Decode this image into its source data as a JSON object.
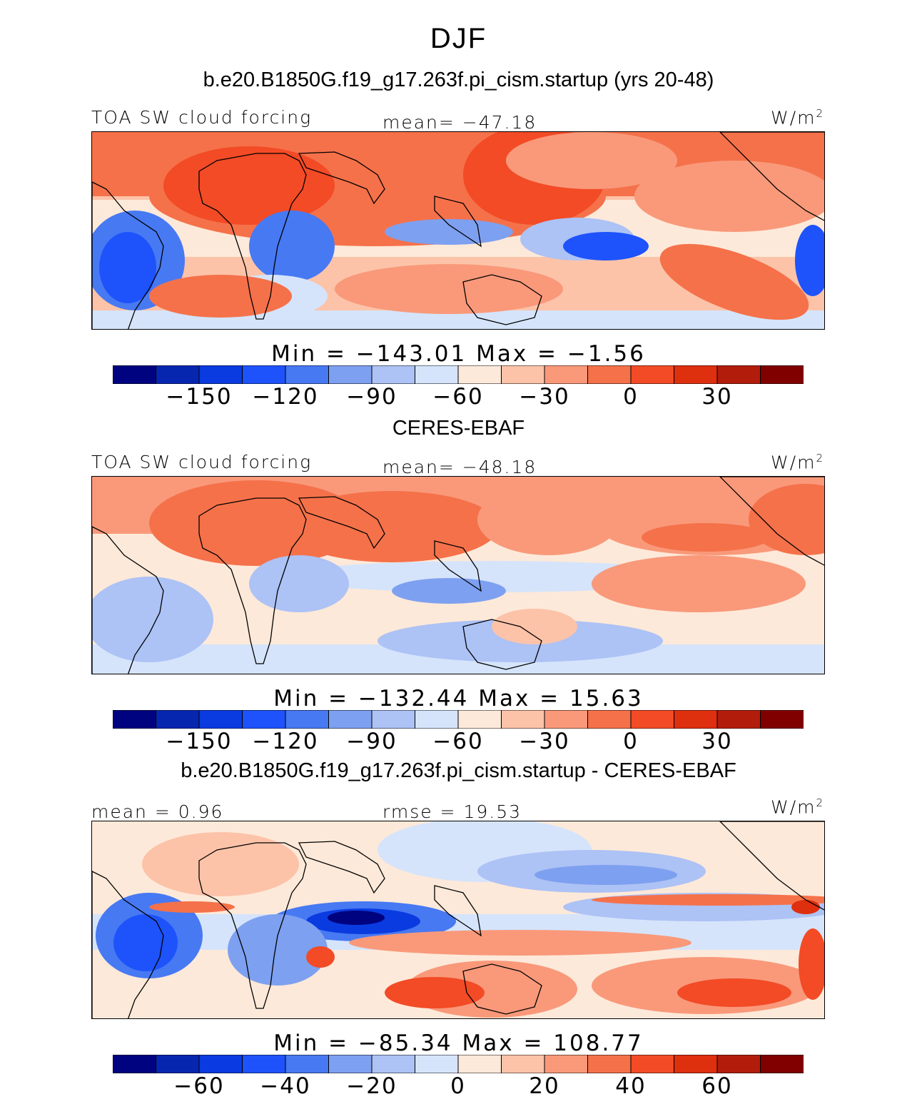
{
  "title": "DJF",
  "colors": {
    "palette": [
      "#00037f",
      "#0726b0",
      "#0a3be0",
      "#1e53fb",
      "#4779f3",
      "#7ea0f0",
      "#adc2f5",
      "#d5e4fb",
      "#fde9d9",
      "#fcc3a9",
      "#f9997a",
      "#f5714a",
      "#f24b26",
      "#de2f0f",
      "#b21d0b",
      "#800000"
    ],
    "coast": "#000000"
  },
  "chart_data": [
    {
      "type": "heatmap",
      "panel_title": "b.e20.B1850G.f19_g17.263f.pi_cism.startup (yrs 20-48)",
      "left_label": "TOA SW cloud forcing",
      "center_label": "mean= −47.18",
      "units_label": "W/m",
      "units_sup": "2",
      "minmax_label": "Min  =  −143.01  Max  =   −1.56",
      "colorbar": {
        "levels": [
          -165,
          -150,
          -135,
          -120,
          -105,
          -90,
          -75,
          -60,
          -45,
          -30,
          -15,
          0,
          15,
          30,
          45
        ],
        "tick_labels": [
          "−150",
          "−120",
          "−90",
          "−60",
          "−30",
          "0",
          "30"
        ],
        "tick_values": [
          -150,
          -120,
          -90,
          -60,
          -30,
          0,
          30
        ]
      },
      "stats": {
        "mean": -47.18,
        "min": -143.01,
        "max": -1.56
      }
    },
    {
      "type": "heatmap",
      "panel_title": "CERES-EBAF",
      "left_label": "TOA SW cloud forcing",
      "center_label": "mean= −48.18",
      "units_label": "W/m",
      "units_sup": "2",
      "minmax_label": "Min  =  −132.44  Max  =   15.63",
      "colorbar": {
        "levels": [
          -165,
          -150,
          -135,
          -120,
          -105,
          -90,
          -75,
          -60,
          -45,
          -30,
          -15,
          0,
          15,
          30,
          45
        ],
        "tick_labels": [
          "−150",
          "−120",
          "−90",
          "−60",
          "−30",
          "0",
          "30"
        ],
        "tick_values": [
          -150,
          -120,
          -90,
          -60,
          -30,
          0,
          30
        ]
      },
      "stats": {
        "mean": -48.18,
        "min": -132.44,
        "max": 15.63
      }
    },
    {
      "type": "heatmap",
      "panel_title": "b.e20.B1850G.f19_g17.263f.pi_cism.startup - CERES-EBAF",
      "left_label": "mean =   0.96",
      "center_label": "rmse  =   19.53",
      "units_label": "W/m",
      "units_sup": "2",
      "minmax_label": "Min  =  −85.34  Max  =  108.77",
      "colorbar": {
        "levels": [
          -70,
          -60,
          -50,
          -40,
          -30,
          -20,
          -10,
          0,
          10,
          20,
          30,
          40,
          50,
          60,
          70
        ],
        "tick_labels": [
          "−60",
          "−40",
          "−20",
          "0",
          "20",
          "40",
          "60"
        ],
        "tick_values": [
          -60,
          -40,
          -20,
          0,
          20,
          40,
          60
        ]
      },
      "stats": {
        "mean": 0.96,
        "rmse": 19.53,
        "min": -85.34,
        "max": 108.77
      }
    }
  ]
}
